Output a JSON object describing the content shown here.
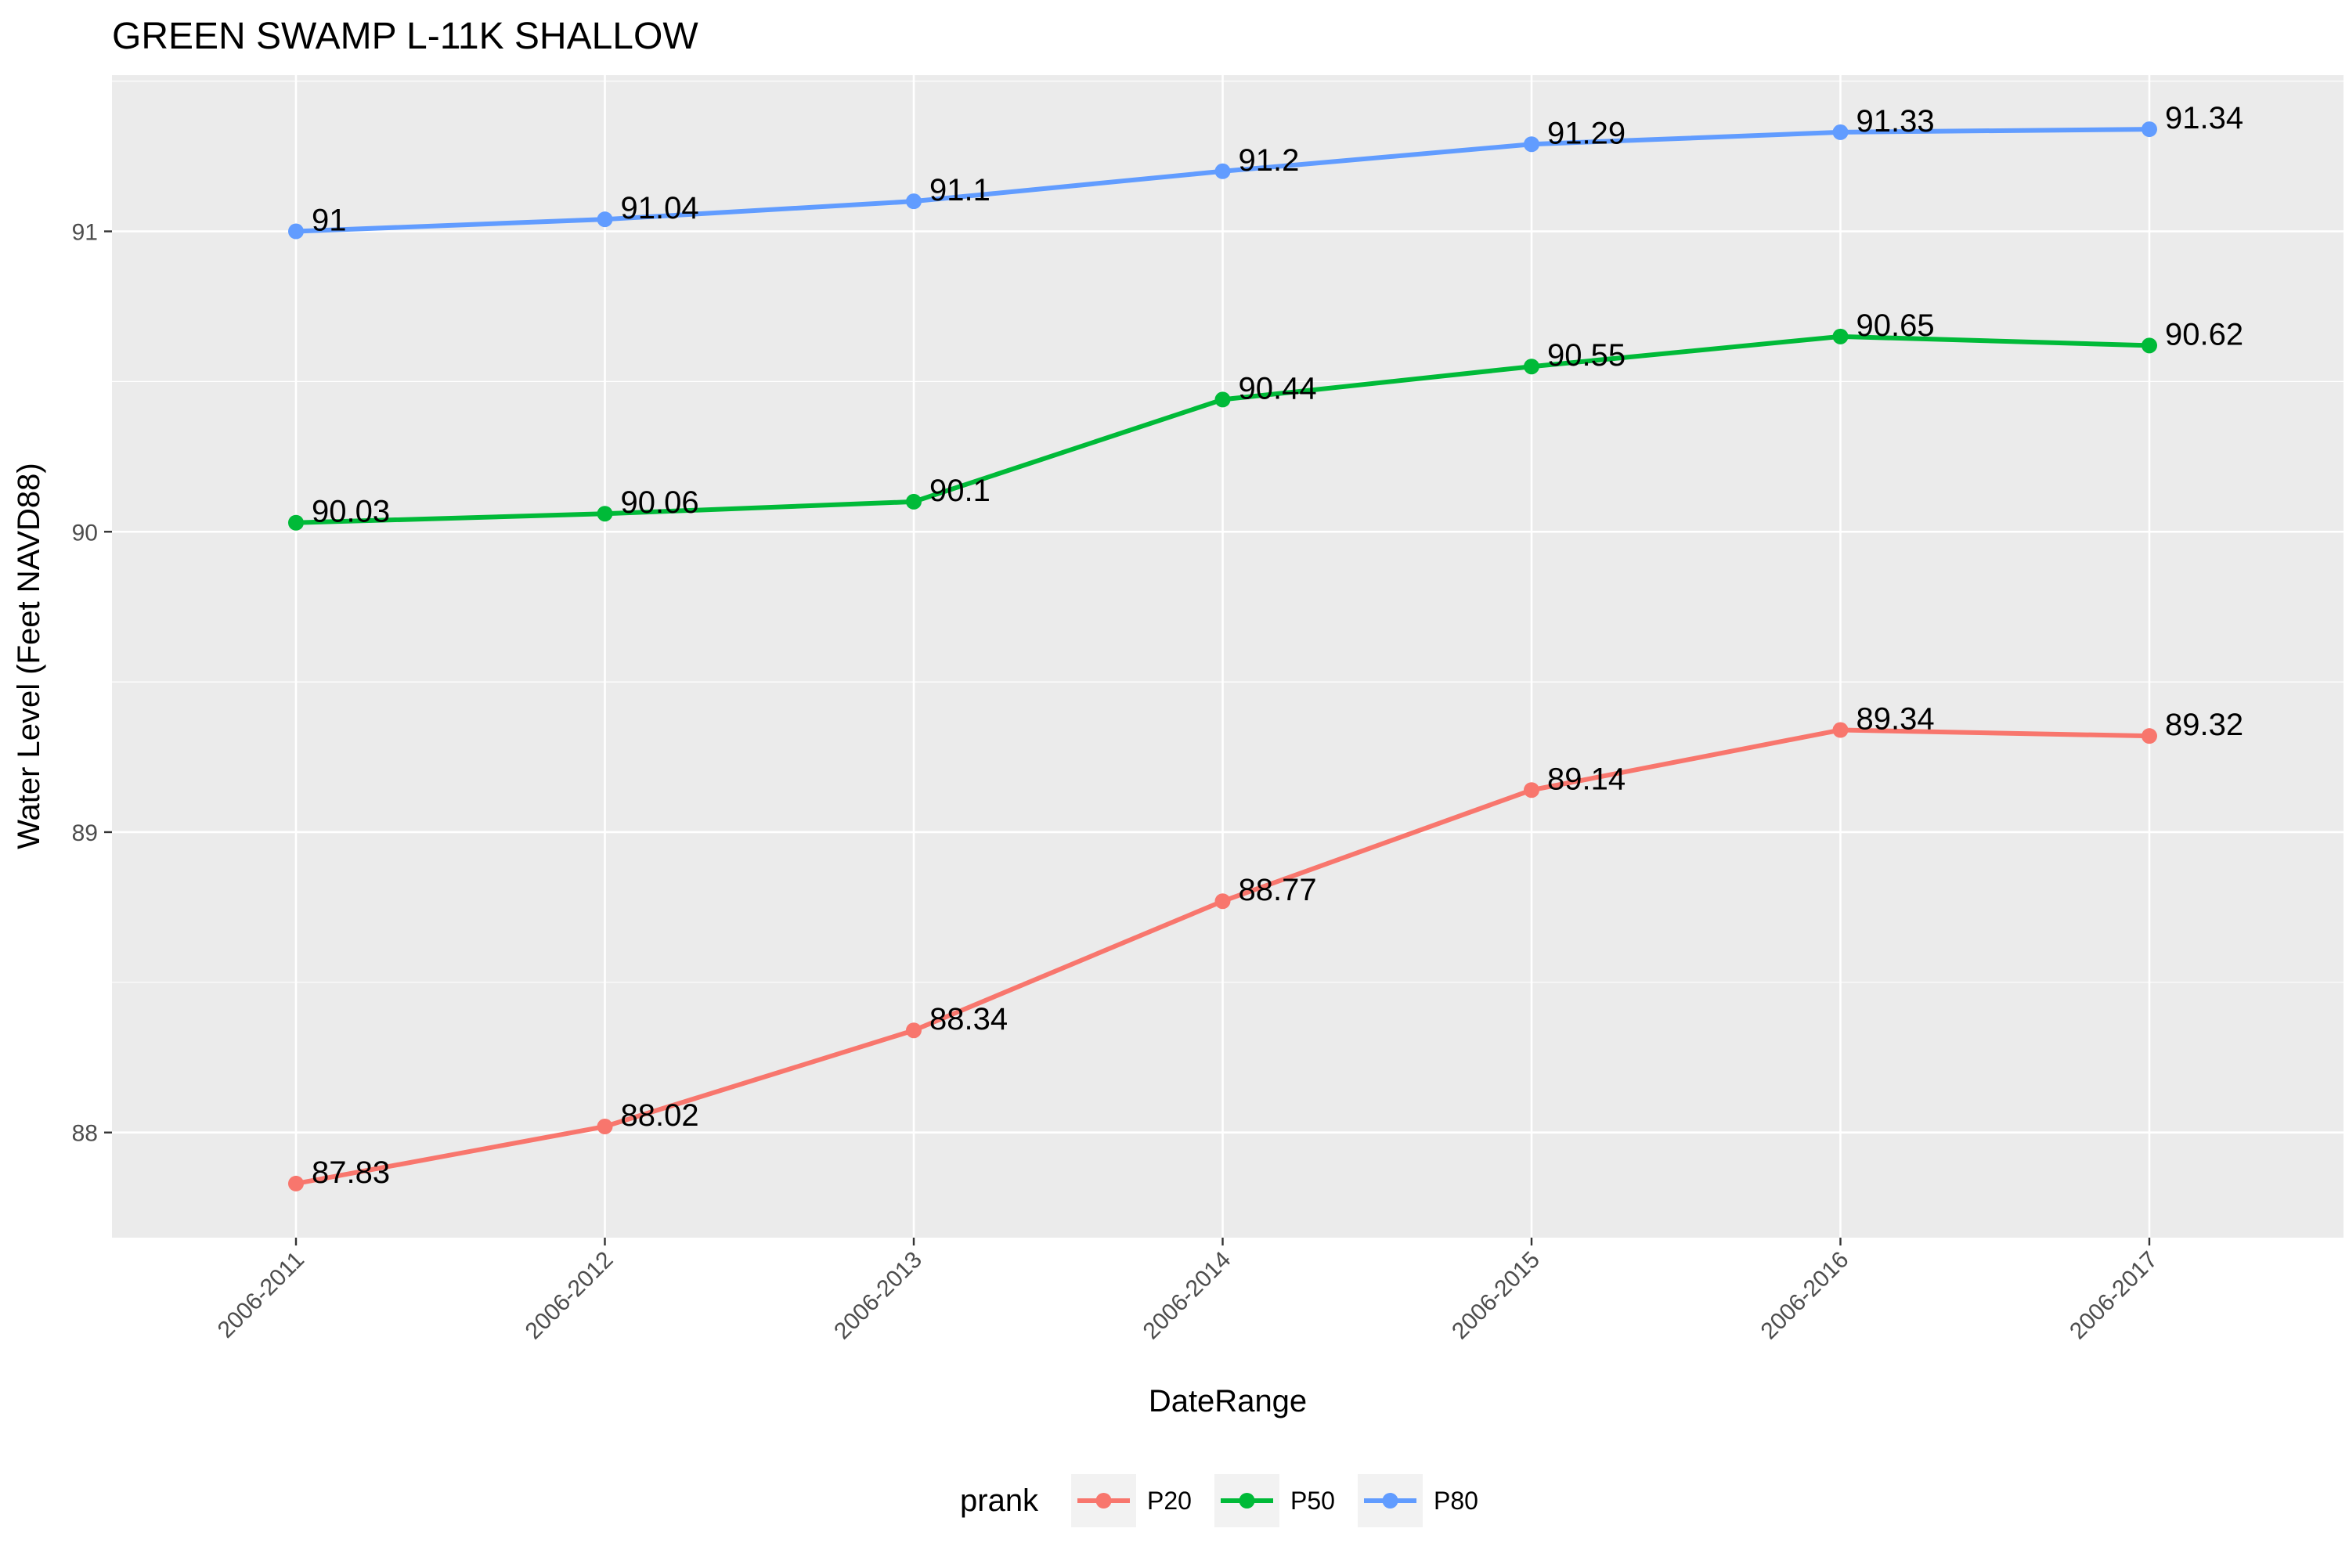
{
  "chart_data": {
    "type": "line",
    "title": "GREEN SWAMP L-11K SHALLOW",
    "xlabel": "DateRange",
    "ylabel": "Water Level (Feet NAVD88)",
    "categories": [
      "2006-2011",
      "2006-2012",
      "2006-2013",
      "2006-2014",
      "2006-2015",
      "2006-2016",
      "2006-2017"
    ],
    "ylim": [
      87.65,
      91.52
    ],
    "yticks": [
      88,
      89,
      90,
      91
    ],
    "ytick_labels": [
      "88",
      "89",
      "90",
      "91"
    ],
    "grid": true,
    "legend": {
      "title": "prank",
      "position": "bottom"
    },
    "series": [
      {
        "name": "P20",
        "color": "#F8766D",
        "values": [
          87.83,
          88.02,
          88.34,
          88.77,
          89.14,
          89.34,
          89.32
        ],
        "labels": [
          "87.83",
          "88.02",
          "88.34",
          "88.77",
          "89.14",
          "89.34",
          "89.32"
        ]
      },
      {
        "name": "P50",
        "color": "#00BA38",
        "values": [
          90.03,
          90.06,
          90.1,
          90.44,
          90.55,
          90.65,
          90.62
        ],
        "labels": [
          "90.03",
          "90.06",
          "90.1",
          "90.44",
          "90.55",
          "90.65",
          "90.62"
        ]
      },
      {
        "name": "P80",
        "color": "#619CFF",
        "values": [
          91.0,
          91.04,
          91.1,
          91.2,
          91.29,
          91.33,
          91.34
        ],
        "labels": [
          "91",
          "91.04",
          "91.1",
          "91.2",
          "91.29",
          "91.33",
          "91.34"
        ]
      }
    ]
  }
}
